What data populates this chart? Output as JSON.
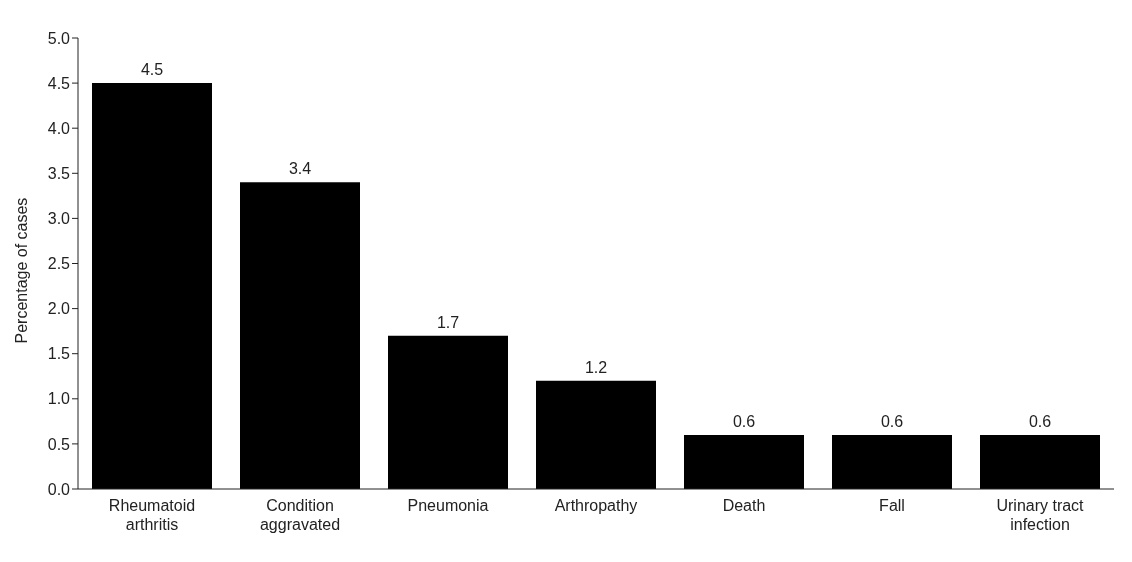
{
  "chart_data": {
    "type": "bar",
    "ylabel": "Percentage of cases",
    "categories": [
      "Rheumatoid arthritis",
      "Condition aggravated",
      "Pneumonia",
      "Arthropathy",
      "Death",
      "Fall",
      "Urinary tract infection"
    ],
    "values": [
      4.5,
      3.4,
      1.7,
      1.2,
      0.6,
      0.6,
      0.6
    ],
    "color": "#000000",
    "ylim": [
      0,
      5
    ],
    "yticks": [
      {
        "value": 0,
        "label": "0.0"
      },
      {
        "value": 0.5,
        "label": "0.5"
      },
      {
        "value": 1,
        "label": "1.0"
      },
      {
        "value": 1.5,
        "label": "1.5"
      },
      {
        "value": 2,
        "label": "2.0"
      },
      {
        "value": 2.5,
        "label": "2.5"
      },
      {
        "value": 3,
        "label": "3.0"
      },
      {
        "value": 3.5,
        "label": "3.5"
      },
      {
        "value": 4,
        "label": "4.0"
      },
      {
        "value": 4.5,
        "label": "4.5"
      },
      {
        "value": 5,
        "label": "5.0"
      }
    ],
    "data_labels": true,
    "grid": false,
    "legend": false
  }
}
